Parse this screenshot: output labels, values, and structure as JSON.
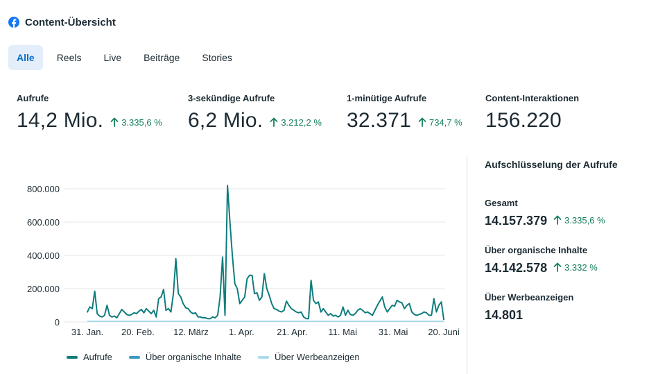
{
  "header": {
    "title": "Content-Übersicht",
    "icon": "facebook-icon",
    "brand_color": "#1877f2"
  },
  "tabs": [
    {
      "label": "Alle",
      "active": true
    },
    {
      "label": "Reels",
      "active": false
    },
    {
      "label": "Live",
      "active": false
    },
    {
      "label": "Beiträge",
      "active": false
    },
    {
      "label": "Stories",
      "active": false
    }
  ],
  "metrics": [
    {
      "label": "Aufrufe",
      "value": "14,2 Mio.",
      "change": "3.335,6 %"
    },
    {
      "label": "3-sekündige Aufrufe",
      "value": "6,2 Mio.",
      "change": "3.212,2 %"
    },
    {
      "label": "1-minütige Aufrufe",
      "value": "32.371",
      "change": "734,7 %"
    },
    {
      "label": "Content-Interaktionen",
      "value": "156.220",
      "change": ""
    }
  ],
  "colors": {
    "positive": "#14805e",
    "series_total": "#0f7c7c",
    "series_organic": "#3b9ac4",
    "series_ads": "#a8dcec",
    "grid": "#e4e6eb",
    "tab_active_bg": "#e3eefa",
    "tab_active_text": "#0a6ec7"
  },
  "chart_data": {
    "type": "line",
    "ylim": [
      0,
      800000
    ],
    "yticks": [
      0,
      200000,
      400000,
      600000,
      800000
    ],
    "ytick_labels": [
      "0",
      "200.000",
      "400.000",
      "600.000",
      "800.000"
    ],
    "xticks": [
      "2024-01-31",
      "2024-02-20",
      "2024-03-12",
      "2024-04-01",
      "2024-04-21",
      "2024-05-11",
      "2024-05-31",
      "2024-06-20"
    ],
    "xtick_labels": [
      "31. Jan.",
      "20. Feb.",
      "12. März",
      "1. Apr.",
      "21. Apr.",
      "11. Mai",
      "31. Mai",
      "20. Juni"
    ],
    "x_start": "2024-01-31",
    "series": [
      {
        "name": "Aufrufe",
        "color": "#0f7c7c",
        "values": [
          60000,
          90000,
          80000,
          185000,
          50000,
          35000,
          30000,
          40000,
          100000,
          40000,
          30000,
          35000,
          25000,
          50000,
          75000,
          60000,
          45000,
          40000,
          45000,
          55000,
          50000,
          65000,
          75000,
          55000,
          80000,
          65000,
          50000,
          70000,
          30000,
          140000,
          150000,
          195000,
          70000,
          80000,
          60000,
          170000,
          380000,
          170000,
          150000,
          110000,
          85000,
          80000,
          60000,
          50000,
          55000,
          30000,
          30000,
          25000,
          25000,
          20000,
          20000,
          30000,
          25000,
          40000,
          150000,
          390000,
          40000,
          820000,
          600000,
          400000,
          230000,
          200000,
          110000,
          130000,
          150000,
          260000,
          280000,
          280000,
          170000,
          175000,
          130000,
          150000,
          290000,
          200000,
          160000,
          110000,
          80000,
          75000,
          65000,
          60000,
          70000,
          125000,
          100000,
          80000,
          70000,
          60000,
          55000,
          60000,
          30000,
          20000,
          20000,
          250000,
          130000,
          110000,
          120000,
          60000,
          80000,
          60000,
          40000,
          50000,
          35000,
          40000,
          30000,
          40000,
          90000,
          40000,
          70000,
          45000,
          40000,
          50000,
          70000,
          80000,
          70000,
          55000,
          60000,
          50000,
          40000,
          70000,
          100000,
          125000,
          150000,
          90000,
          60000,
          80000,
          100000,
          95000,
          130000,
          120000,
          115000,
          80000,
          100000,
          110000,
          60000,
          45000,
          40000,
          45000,
          50000,
          60000,
          55000,
          40000,
          40000,
          140000,
          60000,
          100000,
          120000,
          15000
        ]
      },
      {
        "name": "Über organische Inhalte",
        "color": "#3b9ac4",
        "values": []
      },
      {
        "name": "Über Werbeanzeigen",
        "color": "#a8dcec",
        "values": []
      }
    ]
  },
  "breakdown": {
    "title": "Aufschlüsselung der Aufrufe",
    "items": [
      {
        "label": "Gesamt",
        "value": "14.157.379",
        "change": "3.335,6 %"
      },
      {
        "label": "Über organische Inhalte",
        "value": "14.142.578",
        "change": "3.332 %"
      },
      {
        "label": "Über Werbeanzeigen",
        "value": "14.801",
        "change": ""
      }
    ]
  }
}
